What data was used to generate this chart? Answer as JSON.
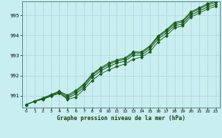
{
  "title": "Graphe pression niveau de la mer (hPa)",
  "background_color": "#c8eef0",
  "grid_color": "#b0d8dc",
  "line_color": "#1a5c1a",
  "xlim": [
    -0.5,
    23.5
  ],
  "ylim": [
    990.4,
    995.7
  ],
  "yticks": [
    991,
    992,
    993,
    994,
    995
  ],
  "xticks": [
    0,
    1,
    2,
    3,
    4,
    5,
    6,
    7,
    8,
    9,
    10,
    11,
    12,
    13,
    14,
    15,
    16,
    17,
    18,
    19,
    20,
    21,
    22,
    23
  ],
  "series": {
    "s1": [
      990.55,
      990.72,
      990.82,
      990.98,
      991.12,
      990.88,
      991.08,
      991.42,
      991.92,
      992.22,
      992.45,
      992.62,
      992.72,
      993.02,
      993.02,
      993.32,
      993.82,
      994.12,
      994.48,
      994.58,
      995.02,
      995.22,
      995.42,
      995.55
    ],
    "s2": [
      990.55,
      990.72,
      990.85,
      991.02,
      991.18,
      990.95,
      991.18,
      991.52,
      992.02,
      992.32,
      992.55,
      992.72,
      992.82,
      993.12,
      993.12,
      993.42,
      993.92,
      994.22,
      994.58,
      994.68,
      995.12,
      995.32,
      995.52,
      995.65
    ],
    "s3": [
      990.55,
      990.72,
      990.88,
      991.05,
      991.22,
      991.02,
      991.25,
      991.58,
      992.08,
      992.38,
      992.62,
      992.78,
      992.88,
      993.18,
      993.18,
      993.48,
      993.98,
      994.28,
      994.65,
      994.75,
      995.18,
      995.38,
      995.58,
      995.72
    ],
    "s4": [
      990.55,
      990.72,
      990.82,
      990.98,
      991.12,
      990.82,
      990.92,
      991.32,
      991.75,
      992.08,
      992.28,
      992.45,
      992.58,
      992.82,
      992.92,
      993.18,
      993.68,
      993.98,
      994.38,
      994.48,
      994.92,
      995.12,
      995.32,
      995.45
    ]
  }
}
